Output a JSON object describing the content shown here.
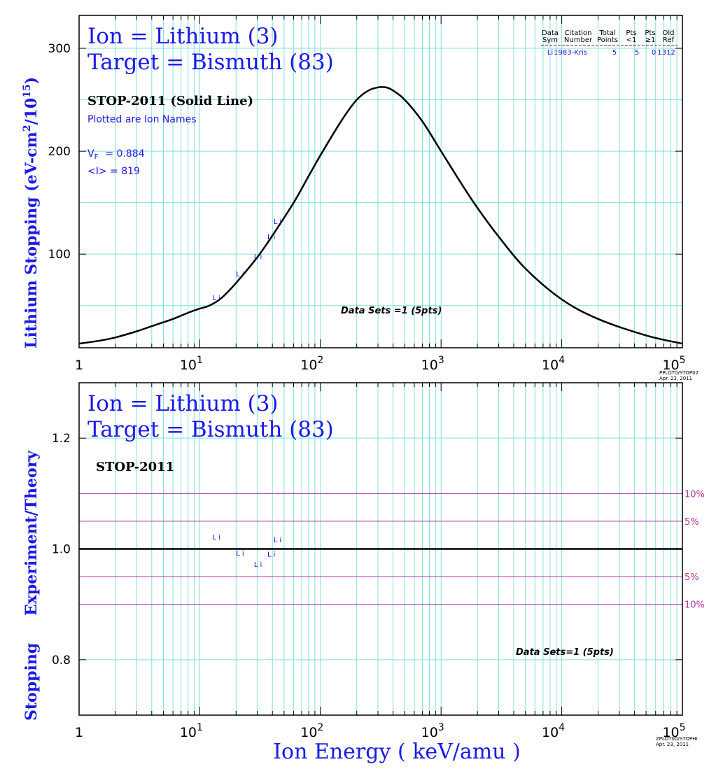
{
  "colors": {
    "axis_frame": "#000000",
    "grid": "#7fe0e0",
    "theory_line": "#000000",
    "data_label": "#1010d0",
    "title_text": "#1a1ae6",
    "percent_lines": "#b0309a"
  },
  "chart_data": [
    {
      "type": "line",
      "title_line1": "Ion = Lithium (3)",
      "title_line2": "Target = Bismuth (83)",
      "subtitle": "STOP-2011 (Solid Line)",
      "note": "Plotted are Ion Names",
      "vf_label": "V",
      "vf_sub": "F",
      "vf_value": "= 0.884",
      "ip_text": "<I> = 819",
      "ylabel_main": "Lithium Stopping (eV-cm",
      "ylabel_sup2": "2",
      "ylabel_div": "/10",
      "ylabel_sup15": "15",
      "ylabel_close": ")",
      "xscale": "log",
      "xlim": [
        1,
        100000
      ],
      "ylim": [
        9,
        332
      ],
      "yticks": [
        100,
        200,
        300
      ],
      "ytick_labels": [
        "100",
        "200",
        "300"
      ],
      "xtick_labels": [
        {
          "base": "1",
          "exp": ""
        },
        {
          "base": "10",
          "exp": "1"
        },
        {
          "base": "10",
          "exp": "2"
        },
        {
          "base": "10",
          "exp": "3"
        },
        {
          "base": "10",
          "exp": "4"
        },
        {
          "base": "10",
          "exp": "5"
        }
      ],
      "legend_table": {
        "headers": [
          [
            "Data",
            "Sym"
          ],
          [
            "Citation",
            "Number"
          ],
          [
            "Total",
            "Points"
          ],
          [
            "Pts",
            "<1"
          ],
          [
            "Pts",
            "≥1"
          ],
          [
            "Old",
            "Ref"
          ]
        ],
        "row": [
          "Li",
          "1983-Kris",
          "5",
          "5",
          "0",
          "1312"
        ]
      },
      "data_sets_text": "Data Sets =1 (5pts)",
      "stamp_line1": "PPLOT0/STOP02",
      "stamp_line2": "Apr. 23, 2011",
      "series": [
        {
          "style": "solid",
          "x": [
            1,
            1.5,
            2,
            3,
            4,
            6,
            8,
            10,
            12,
            15,
            20,
            30,
            40,
            60,
            80,
            100,
            150,
            200,
            250,
            300,
            350,
            400,
            500,
            700,
            1000,
            1500,
            2000,
            3000,
            5000,
            10000,
            20000,
            50000,
            100000
          ],
          "y": [
            13,
            16,
            19,
            25,
            30,
            37,
            43,
            47,
            50,
            57,
            72,
            97,
            118,
            150,
            176,
            196,
            230,
            250,
            259,
            262,
            262,
            259,
            250,
            229,
            200,
            167,
            145,
            117,
            86,
            56,
            37,
            21,
            13
          ]
        }
      ],
      "points": [
        {
          "label": "Li",
          "x": 14,
          "y": 58
        },
        {
          "label": "Li",
          "x": 22,
          "y": 81
        },
        {
          "label": "Li",
          "x": 31,
          "y": 98
        },
        {
          "label": "Li",
          "x": 40,
          "y": 117
        },
        {
          "label": "Li",
          "x": 45,
          "y": 132
        }
      ]
    },
    {
      "type": "scatter",
      "title_line1": "Ion = Lithium (3)",
      "title_line2": "Target = Bismuth (83)",
      "subtitle": "STOP-2011",
      "ylabel_stopping": "Stopping",
      "ylabel_ratio": "Experiment/Theory",
      "xlabel": "Ion Energy ( keV/amu )",
      "xscale": "log",
      "xlim": [
        1,
        100000
      ],
      "ylim": [
        0.7,
        1.3
      ],
      "yticks": [
        0.8,
        1.0,
        1.2
      ],
      "ytick_labels": [
        "0.8",
        "1.0",
        "1.2"
      ],
      "xtick_labels": [
        {
          "base": "1",
          "exp": ""
        },
        {
          "base": "10",
          "exp": "1"
        },
        {
          "base": "10",
          "exp": "2"
        },
        {
          "base": "10",
          "exp": "3"
        },
        {
          "base": "10",
          "exp": "4"
        },
        {
          "base": "10",
          "exp": "5"
        }
      ],
      "reference_line": 1.0,
      "percent_bands": [
        {
          "value": 1.1,
          "label": "10%"
        },
        {
          "value": 1.05,
          "label": "5%"
        },
        {
          "value": 0.95,
          "label": "5%"
        },
        {
          "value": 0.9,
          "label": "10%"
        }
      ],
      "data_sets_text": "Data Sets=1 (5pts)",
      "stamp_line1": "ZPLOT00/STOPHI",
      "stamp_line2": "Apr. 23, 2011",
      "points": [
        {
          "label": "Li",
          "x": 14,
          "y": 1.022
        },
        {
          "label": "Li",
          "x": 22,
          "y": 0.993
        },
        {
          "label": "Li",
          "x": 31,
          "y": 0.973
        },
        {
          "label": "Li",
          "x": 40,
          "y": 0.991
        },
        {
          "label": "Li",
          "x": 45,
          "y": 1.017
        }
      ]
    }
  ]
}
